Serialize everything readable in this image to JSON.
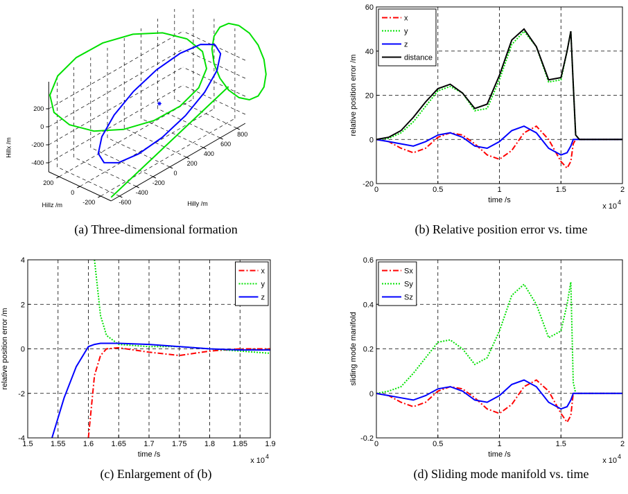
{
  "chart_data": [
    {
      "type": "line3d",
      "caption": "(a) Three-dimensional formation",
      "x_label": "Hilly /m",
      "y_label": "Hillz /m",
      "z_label": "Hillx /m",
      "xlim": [
        -700,
        900
      ],
      "ylim": [
        -300,
        300
      ],
      "zlim": [
        -500,
        500
      ],
      "xticks": [
        -600,
        -400,
        -200,
        0,
        200,
        400,
        600,
        800
      ],
      "yticks": [
        -200,
        0,
        200
      ],
      "zticks": [
        -400,
        -200,
        0,
        200
      ],
      "grid": true,
      "series": [
        {
          "color": "#00e000",
          "x": [
            700,
            647,
            495,
            268,
            0,
            -268,
            -495,
            -647,
            -700,
            -647,
            -495,
            -268,
            0,
            268,
            495,
            647,
            700
          ],
          "y": [
            100,
            292,
            454,
            562,
            600,
            562,
            454,
            292,
            100,
            -92,
            -254,
            -362,
            -400,
            -362,
            -254,
            -92,
            100
          ],
          "z": [
            330,
            322,
            301,
            268,
            230,
            192,
            159,
            135,
            130,
            135,
            159,
            192,
            230,
            268,
            301,
            322,
            330
          ]
        },
        {
          "color": "#00e000",
          "x": [
            800,
            800,
            800,
            800,
            800,
            800,
            800,
            800,
            800,
            800,
            800,
            800,
            800,
            800,
            800,
            800,
            800
          ],
          "y": [
            -320,
            -220,
            -136,
            -80,
            -60,
            -80,
            -136,
            -220,
            -320,
            -420,
            -504,
            -560,
            -580,
            -560,
            -504,
            -420,
            -320
          ],
          "z": [
            650,
            620,
            533,
            403,
            250,
            97,
            -33,
            -120,
            -150,
            -120,
            -33,
            97,
            250,
            403,
            533,
            620,
            650
          ]
        },
        {
          "color": "#00e000",
          "x": [
            -700,
            0,
            700
          ],
          "y": [
            -300,
            -300,
            -300
          ],
          "z": [
            -460,
            -222,
            15
          ]
        },
        {
          "color": "#0000ff",
          "x": [
            660,
            610,
            467,
            253,
            0,
            -253,
            -467,
            -610,
            -660,
            -610,
            -467,
            -253,
            0,
            253,
            467,
            610,
            660
          ],
          "y": [
            -200,
            -104,
            -23,
            31,
            50,
            31,
            -23,
            -104,
            -200,
            -296,
            -377,
            -431,
            -450,
            -431,
            -377,
            -296,
            -200
          ],
          "z": [
            450,
            427,
            362,
            265,
            150,
            35,
            -62,
            -127,
            -150,
            -127,
            -62,
            35,
            150,
            265,
            362,
            427,
            450
          ]
        }
      ],
      "points": [
        {
          "color": "#0000ff",
          "x": 0,
          "y": -200,
          "z": 150
        }
      ]
    },
    {
      "type": "line",
      "caption": "(b) Relative position error vs. time",
      "x_label": "time /s",
      "y_label": "relative position error /m",
      "x_multiplier": "x 10",
      "x_multiplier_exponent": "4",
      "x": [
        0,
        0.1,
        0.2,
        0.3,
        0.4,
        0.5,
        0.6,
        0.7,
        0.8,
        0.9,
        1.0,
        1.1,
        1.2,
        1.3,
        1.4,
        1.5,
        1.55,
        1.58,
        1.6,
        1.62,
        1.65,
        1.7,
        1.8,
        1.9,
        2.0
      ],
      "series": [
        {
          "name": "x",
          "color": "#ff0000",
          "style": "dash-dot",
          "values": [
            0,
            -1,
            -4,
            -6,
            -4,
            1,
            3,
            2,
            -2,
            -7,
            -9,
            -5,
            3,
            6,
            0,
            -10,
            -13,
            -10,
            -2,
            0,
            0,
            0,
            0,
            0,
            0
          ]
        },
        {
          "name": "y",
          "color": "#00e000",
          "style": "dotted",
          "values": [
            0,
            0.5,
            3,
            8,
            15,
            22,
            24,
            21,
            13,
            14,
            27,
            43,
            49,
            42,
            26,
            27,
            40,
            49,
            25,
            2,
            0,
            0,
            0,
            0,
            0
          ]
        },
        {
          "name": "z",
          "color": "#0000ff",
          "style": "solid",
          "values": [
            0,
            -1,
            -2,
            -3,
            -1,
            2,
            3,
            1,
            -3,
            -4,
            -1,
            4,
            6,
            3,
            -4,
            -7,
            -6,
            -3,
            0,
            0,
            0,
            0,
            0,
            0,
            0
          ]
        },
        {
          "name": "distance",
          "color": "#000000",
          "style": "solid",
          "values": [
            0,
            1,
            4,
            10,
            17,
            23,
            25,
            21,
            14,
            16,
            29,
            45,
            50,
            42,
            27,
            28,
            40,
            49,
            25,
            2,
            0,
            0,
            0,
            0,
            0
          ]
        }
      ],
      "xlim": [
        0,
        2
      ],
      "ylim": [
        -20,
        60
      ],
      "xticks": [
        0,
        0.5,
        1,
        1.5,
        2
      ],
      "yticks": [
        -20,
        0,
        20,
        40,
        60
      ],
      "grid": true,
      "legend": "upper left"
    },
    {
      "type": "line",
      "caption": "(c) Enlargement of (b)",
      "x_label": "time /s",
      "y_label": "relative position error /m",
      "x_multiplier": "x 10",
      "x_multiplier_exponent": "4",
      "x": [
        1.54,
        1.56,
        1.58,
        1.6,
        1.61,
        1.62,
        1.63,
        1.65,
        1.7,
        1.75,
        1.8,
        1.85,
        1.9
      ],
      "series": [
        {
          "name": "x",
          "color": "#ff0000",
          "style": "dash-dot",
          "values": [
            null,
            null,
            null,
            -4,
            -1.2,
            -0.3,
            0,
            0.05,
            -0.15,
            -0.3,
            -0.1,
            0,
            0
          ]
        },
        {
          "name": "y",
          "color": "#00e000",
          "style": "dotted",
          "values": [
            null,
            null,
            null,
            null,
            4,
            1.5,
            0.6,
            0.2,
            0.1,
            0.1,
            0,
            -0.1,
            -0.2
          ]
        },
        {
          "name": "z",
          "color": "#0000ff",
          "style": "solid",
          "values": [
            -4,
            -2.2,
            -0.8,
            0.1,
            0.2,
            0.25,
            0.25,
            0.25,
            0.2,
            0.1,
            0,
            -0.05,
            -0.05
          ]
        }
      ],
      "xlim": [
        1.5,
        1.9
      ],
      "ylim": [
        -4,
        4
      ],
      "xticks": [
        1.5,
        1.55,
        1.6,
        1.65,
        1.7,
        1.75,
        1.8,
        1.85,
        1.9
      ],
      "yticks": [
        -4,
        -2,
        0,
        2,
        4
      ],
      "grid": true,
      "legend": "upper right"
    },
    {
      "type": "line",
      "caption": "(d) Sliding mode manifold vs. time",
      "x_label": "time /s",
      "y_label": "sliding mode manifold",
      "x_multiplier": "x 10",
      "x_multiplier_exponent": "4",
      "x": [
        0,
        0.1,
        0.2,
        0.3,
        0.4,
        0.5,
        0.6,
        0.7,
        0.8,
        0.9,
        1.0,
        1.1,
        1.2,
        1.3,
        1.4,
        1.5,
        1.55,
        1.58,
        1.6,
        1.62,
        1.65,
        1.7,
        1.8,
        1.9,
        2.0
      ],
      "series": [
        {
          "name": "Sx",
          "color": "#ff0000",
          "style": "dash-dot",
          "values": [
            0,
            -0.01,
            -0.04,
            -0.06,
            -0.04,
            0.01,
            0.03,
            0.02,
            -0.02,
            -0.07,
            -0.09,
            -0.05,
            0.03,
            0.06,
            0.01,
            -0.09,
            -0.13,
            -0.1,
            0,
            0,
            0,
            0,
            0,
            0,
            0
          ]
        },
        {
          "name": "Sy",
          "color": "#00e000",
          "style": "dotted",
          "values": [
            0,
            0.01,
            0.03,
            0.09,
            0.16,
            0.23,
            0.24,
            0.2,
            0.13,
            0.16,
            0.28,
            0.44,
            0.49,
            0.4,
            0.25,
            0.28,
            0.4,
            0.5,
            0.05,
            0,
            0,
            0,
            0,
            0,
            0
          ]
        },
        {
          "name": "Sz",
          "color": "#0000ff",
          "style": "solid",
          "values": [
            0,
            -0.01,
            -0.02,
            -0.03,
            -0.01,
            0.02,
            0.03,
            0.01,
            -0.03,
            -0.04,
            -0.01,
            0.04,
            0.06,
            0.03,
            -0.04,
            -0.07,
            -0.06,
            -0.03,
            0,
            0,
            0,
            0,
            0,
            0,
            0
          ]
        }
      ],
      "xlim": [
        0,
        2
      ],
      "ylim": [
        -0.2,
        0.6
      ],
      "xticks": [
        0,
        0.5,
        1,
        1.5,
        2
      ],
      "yticks": [
        -0.2,
        0,
        0.2,
        0.4,
        0.6
      ],
      "grid": true,
      "legend": "upper left"
    }
  ]
}
